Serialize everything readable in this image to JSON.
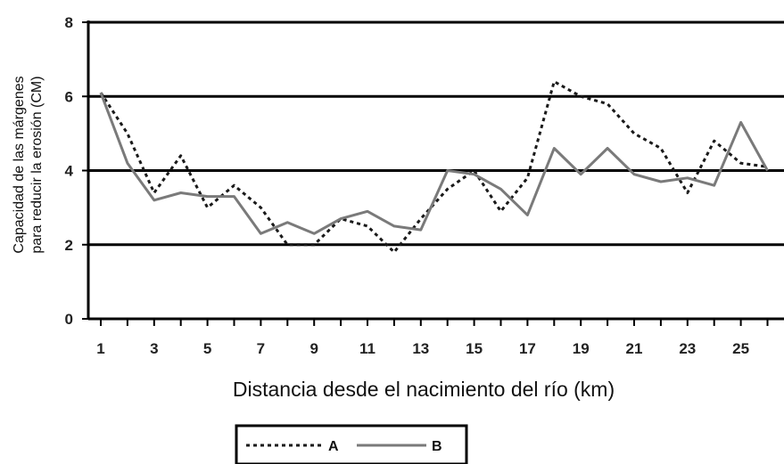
{
  "chart_data": {
    "type": "line",
    "xlabel": "Distancia desde el nacimiento del río (km)",
    "ylabel_lines": [
      "Capacidad de las márgenes",
      "para reducir la erosión (CM)"
    ],
    "ylim": [
      0,
      8
    ],
    "xlim": [
      1,
      26
    ],
    "y_ticks": [
      "0",
      "2",
      "4",
      "6",
      "8"
    ],
    "x_ticks": [
      "1",
      "3",
      "5",
      "7",
      "9",
      "11",
      "13",
      "15",
      "17",
      "19",
      "21",
      "23",
      "25"
    ],
    "grid_y": [
      2,
      4,
      6,
      8
    ],
    "legend_position": "bottom-center",
    "x": [
      1,
      2,
      3,
      4,
      5,
      6,
      7,
      8,
      9,
      10,
      11,
      12,
      13,
      14,
      15,
      16,
      17,
      18,
      19,
      20,
      21,
      22,
      23,
      24,
      25,
      26
    ],
    "series": [
      {
        "name": "A",
        "style": "dotted",
        "color": "#1a1a1a",
        "values": [
          6.1,
          5.0,
          3.4,
          4.4,
          3.0,
          3.6,
          3.0,
          2.0,
          2.0,
          2.7,
          2.5,
          1.8,
          2.7,
          3.5,
          4.0,
          2.9,
          3.8,
          6.4,
          6.0,
          5.8,
          5.0,
          4.6,
          3.4,
          4.8,
          4.2,
          4.1
        ]
      },
      {
        "name": "B",
        "style": "solid",
        "color": "#7a7a7a",
        "values": [
          6.1,
          4.2,
          3.2,
          3.4,
          3.3,
          3.3,
          2.3,
          2.6,
          2.3,
          2.7,
          2.9,
          2.5,
          2.4,
          4.0,
          3.9,
          3.5,
          2.8,
          4.6,
          3.9,
          4.6,
          3.9,
          3.7,
          3.8,
          3.6,
          5.3,
          4.0
        ]
      }
    ]
  }
}
